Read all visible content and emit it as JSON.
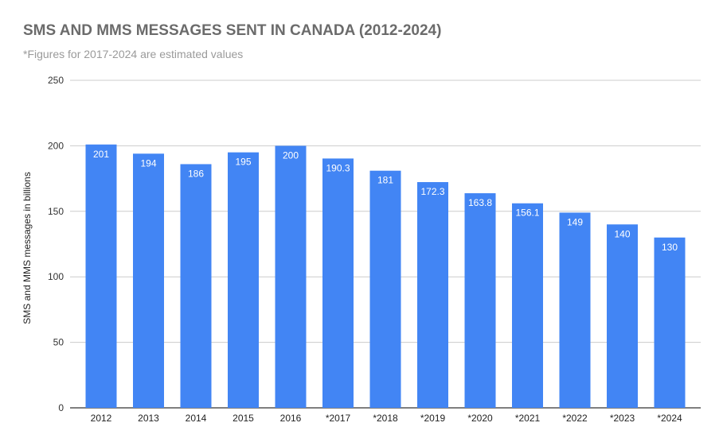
{
  "chart_data": {
    "type": "bar",
    "title": "SMS AND MMS MESSAGES SENT IN CANADA (2012-2024)",
    "subtitle": "*Figures for 2017-2024 are estimated values",
    "xlabel": "",
    "ylabel": "SMS and MMS messages in billions",
    "ylim": [
      0,
      250
    ],
    "yticks": [
      0,
      50,
      100,
      150,
      200,
      250
    ],
    "grid": true,
    "legend": "none",
    "bar_color": "#4285f4",
    "categories": [
      "2012",
      "2013",
      "2014",
      "2015",
      "2016",
      "*2017",
      "*2018",
      "*2019",
      "*2020",
      "*2021",
      "*2022",
      "*2023",
      "*2024"
    ],
    "values": [
      201,
      194,
      186,
      195,
      200,
      190.3,
      181,
      172.3,
      163.8,
      156.1,
      149,
      140,
      130
    ],
    "data_labels": [
      "201",
      "194",
      "186",
      "195",
      "200",
      "190.3",
      "181",
      "172.3",
      "163.8",
      "156.1",
      "149",
      "140",
      "130"
    ]
  }
}
